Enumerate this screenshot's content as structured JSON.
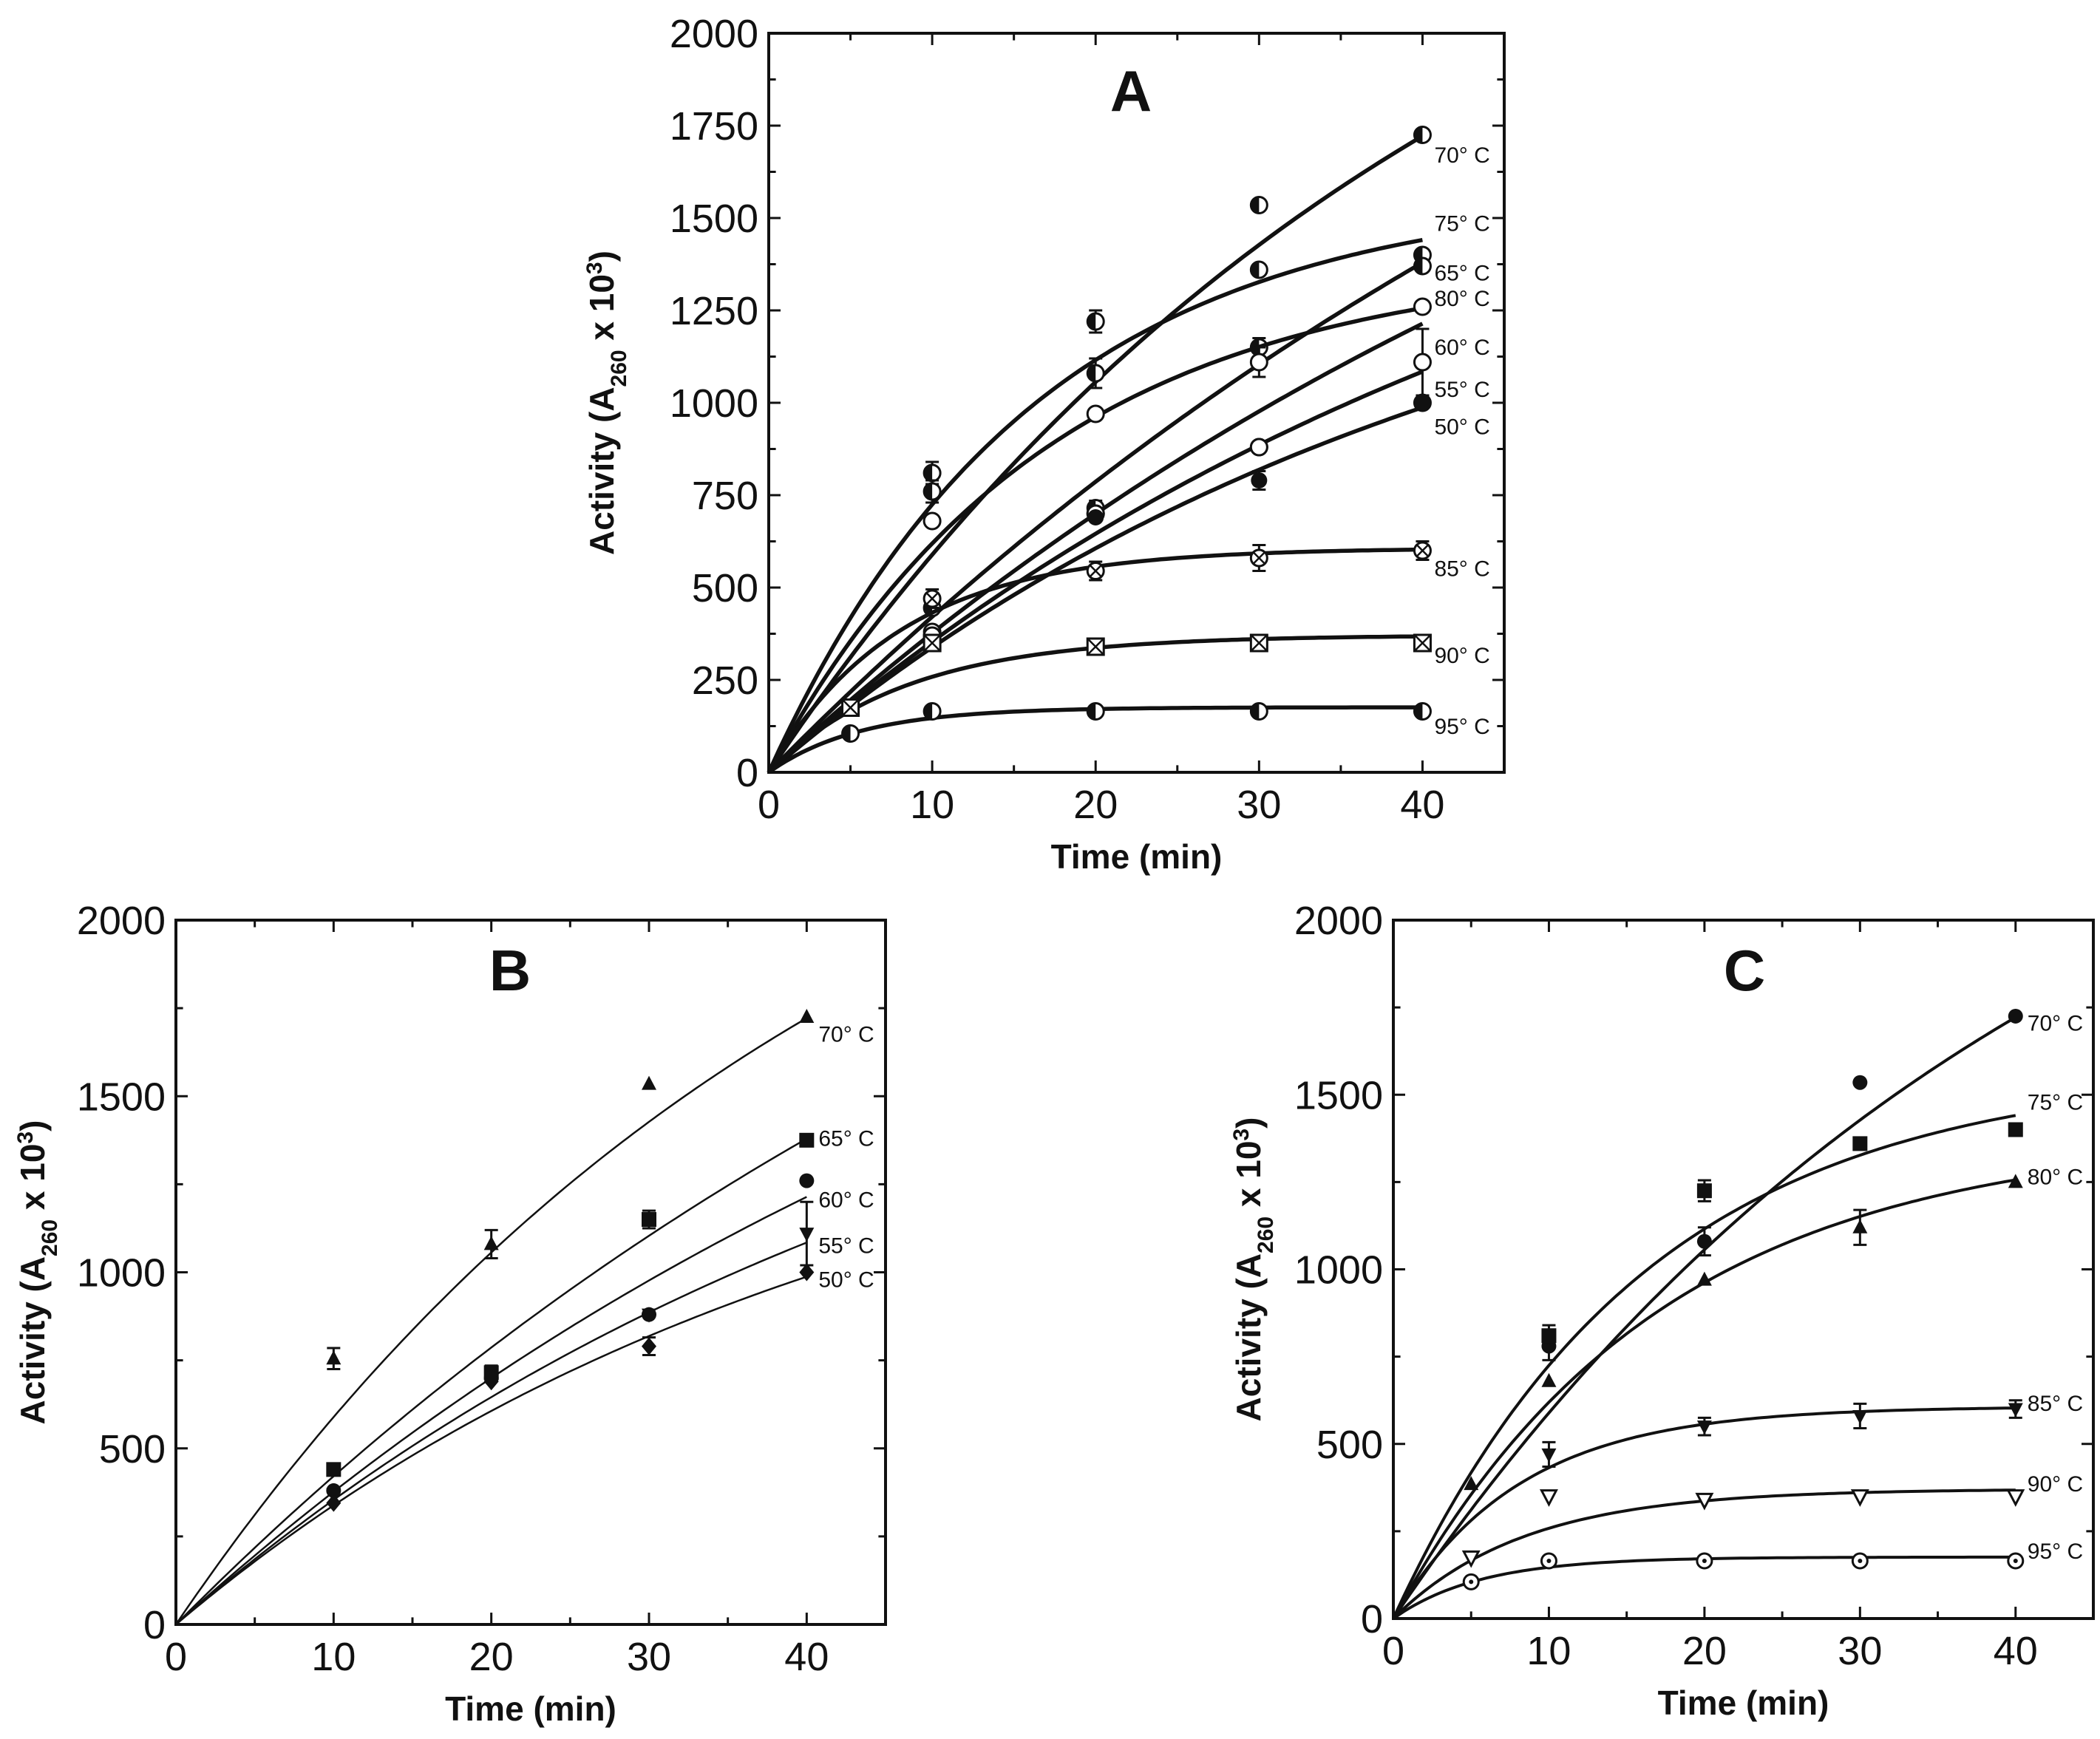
{
  "chart_data": [
    {
      "panel": "A",
      "type": "line",
      "title": "A",
      "xlabel": "Time (min)",
      "ylabel": "Activity (A260 x 103)",
      "ylabel_parts": [
        "Activity (A",
        "260",
        " x 10",
        "3",
        ")"
      ],
      "xlim": [
        0,
        45
      ],
      "ylim": [
        0,
        2000
      ],
      "x_ticks": [
        0,
        10,
        20,
        30,
        40
      ],
      "y_ticks": [
        0,
        250,
        500,
        750,
        1000,
        1250,
        1500,
        1750,
        2000
      ],
      "grid": false,
      "series": [
        {
          "name": "70° C",
          "x": [
            10,
            20,
            30,
            40
          ],
          "y": [
            810,
            1080,
            1535,
            1725
          ],
          "err": [
            30,
            40,
            0,
            0
          ],
          "fit": {
            "a": 2855,
            "k": 0.0231
          },
          "marker": "half-circle"
        },
        {
          "name": "75° C",
          "x": [
            10,
            20,
            30,
            40
          ],
          "y": [
            760,
            1220,
            1360,
            1400
          ],
          "err": [
            30,
            30,
            0,
            0
          ],
          "fit": {
            "a": 1574,
            "k": 0.0617
          },
          "marker": "half-circle"
        },
        {
          "name": "65° C",
          "x": [
            10,
            20,
            30,
            40
          ],
          "y": [
            445,
            715,
            1150,
            1370
          ],
          "err": [
            0,
            20,
            25,
            0
          ],
          "fit": {
            "a": 3200,
            "k": 0.0141
          },
          "marker": "half-circle"
        },
        {
          "name": "80° C",
          "x": [
            10,
            20,
            30,
            40
          ],
          "y": [
            680,
            970,
            1110,
            1260
          ],
          "err": [
            0,
            0,
            40,
            0
          ],
          "fit": {
            "a": 1386,
            "k": 0.0592
          },
          "marker": "circle-open"
        },
        {
          "name": "60° C",
          "x": [
            10,
            20,
            30,
            40
          ],
          "y": [
            380,
            700,
            880,
            1110
          ],
          "err": [
            0,
            0,
            0,
            90
          ],
          "fit": {
            "a": 2640,
            "k": 0.0154
          },
          "marker": "circle-open"
        },
        {
          "name": "55° C",
          "x": [
            10,
            20,
            30,
            40
          ],
          "y": [
            370,
            700,
            880,
            1000
          ],
          "err": [
            0,
            0,
            0,
            0
          ],
          "fit": {
            "a": 2016,
            "k": 0.0193
          },
          "marker": "circle-open"
        },
        {
          "name": "50° C",
          "x": [
            10,
            20,
            30,
            40
          ],
          "y": [
            350,
            690,
            790,
            1000
          ],
          "err": [
            0,
            0,
            25,
            0
          ],
          "fit": {
            "a": 1633,
            "k": 0.0232
          },
          "marker": "circle-filled"
        },
        {
          "name": "85° C",
          "x": [
            10,
            20,
            30,
            40
          ],
          "y": [
            470,
            545,
            580,
            600
          ],
          "err": [
            25,
            25,
            35,
            25
          ],
          "fit": {
            "a": 607,
            "k": 0.1244
          },
          "marker": "cross-circle"
        },
        {
          "name": "90° C",
          "x": [
            5,
            10,
            20,
            30,
            40
          ],
          "y": [
            175,
            350,
            340,
            350,
            350
          ],
          "err": [
            0,
            0,
            0,
            0,
            0
          ],
          "fit": {
            "a": 371,
            "k": 0.1193
          },
          "marker": "cross-square"
        },
        {
          "name": "95° C",
          "x": [
            5,
            10,
            20,
            30,
            40
          ],
          "y": [
            105,
            165,
            165,
            165,
            165
          ],
          "err": [
            0,
            0,
            0,
            0,
            0
          ],
          "fit": {
            "a": 176,
            "k": 0.1797
          },
          "marker": "half-circle"
        }
      ]
    },
    {
      "panel": "B",
      "type": "line",
      "title": "B",
      "xlabel": "Time (min)",
      "ylabel": "Activity (A260 x 103)",
      "ylabel_parts": [
        "Activity (A",
        "260",
        " x 10",
        "3",
        ")"
      ],
      "xlim": [
        0,
        45
      ],
      "ylim": [
        0,
        2000
      ],
      "x_ticks": [
        0,
        10,
        20,
        30,
        40
      ],
      "y_ticks": [
        0,
        500,
        1000,
        1500,
        2000
      ],
      "grid": false,
      "series": [
        {
          "name": "70° C",
          "x": [
            10,
            20,
            30,
            40
          ],
          "y": [
            755,
            1080,
            1535,
            1725
          ],
          "err": [
            30,
            40,
            0,
            0
          ],
          "fit": {
            "a": 2855,
            "k": 0.0231
          },
          "marker": "triangle-up"
        },
        {
          "name": "65° C",
          "x": [
            10,
            20,
            30,
            40
          ],
          "y": [
            440,
            715,
            1150,
            1375
          ],
          "err": [
            0,
            20,
            25,
            0
          ],
          "fit": {
            "a": 3200,
            "k": 0.0141
          },
          "marker": "square"
        },
        {
          "name": "60° C",
          "x": [
            10,
            20,
            30,
            40
          ],
          "y": [
            380,
            700,
            880,
            1260
          ],
          "err": [
            0,
            0,
            0,
            0
          ],
          "fit": {
            "a": 2640,
            "k": 0.0154
          },
          "marker": "circle"
        },
        {
          "name": "55° C",
          "x": [
            10,
            20,
            30,
            40
          ],
          "y": [
            370,
            700,
            880,
            1110
          ],
          "err": [
            0,
            0,
            0,
            90
          ],
          "fit": {
            "a": 2016,
            "k": 0.0193
          },
          "marker": "triangle-down"
        },
        {
          "name": "50° C",
          "x": [
            10,
            20,
            30,
            40
          ],
          "y": [
            345,
            690,
            790,
            1000
          ],
          "err": [
            0,
            0,
            25,
            0
          ],
          "fit": {
            "a": 1633,
            "k": 0.0232
          },
          "marker": "diamond"
        }
      ]
    },
    {
      "panel": "C",
      "type": "line",
      "title": "C",
      "xlabel": "Time (min)",
      "ylabel": "Activity (A260 x 103)",
      "ylabel_parts": [
        "Activity (A",
        "260",
        " x 10",
        "3",
        ")"
      ],
      "xlim": [
        0,
        45
      ],
      "ylim": [
        0,
        2000
      ],
      "x_ticks": [
        0,
        10,
        20,
        30,
        40
      ],
      "y_ticks": [
        0,
        500,
        1000,
        1500,
        2000
      ],
      "grid": false,
      "series": [
        {
          "name": "70° C",
          "x": [
            10,
            20,
            30,
            40
          ],
          "y": [
            780,
            1080,
            1535,
            1725
          ],
          "err": [
            40,
            40,
            0,
            0
          ],
          "fit": {
            "a": 2855,
            "k": 0.0231
          },
          "marker": "circle"
        },
        {
          "name": "75° C",
          "x": [
            10,
            20,
            30,
            40
          ],
          "y": [
            810,
            1225,
            1360,
            1400
          ],
          "err": [
            30,
            30,
            0,
            0
          ],
          "fit": {
            "a": 1574,
            "k": 0.0617
          },
          "marker": "square"
        },
        {
          "name": "80° C",
          "x": [
            5,
            10,
            20,
            30,
            40
          ],
          "y": [
            385,
            680,
            970,
            1120,
            1250
          ],
          "err": [
            0,
            0,
            0,
            50,
            0
          ],
          "fit": {
            "a": 1386,
            "k": 0.0592
          },
          "marker": "triangle-up"
        },
        {
          "name": "85° C",
          "x": [
            10,
            20,
            30,
            40
          ],
          "y": [
            470,
            550,
            580,
            600
          ],
          "err": [
            35,
            25,
            35,
            25
          ],
          "fit": {
            "a": 607,
            "k": 0.1244
          },
          "marker": "triangle-down"
        },
        {
          "name": "90° C",
          "x": [
            5,
            10,
            20,
            30,
            40
          ],
          "y": [
            175,
            350,
            340,
            350,
            350
          ],
          "err": [
            0,
            0,
            0,
            0,
            0
          ],
          "fit": {
            "a": 371,
            "k": 0.1193
          },
          "marker": "triangle-down-open"
        },
        {
          "name": "95° C",
          "x": [
            5,
            10,
            20,
            30,
            40
          ],
          "y": [
            105,
            165,
            165,
            165,
            165
          ],
          "err": [
            0,
            0,
            0,
            0,
            0
          ],
          "fit": {
            "a": 176,
            "k": 0.1797
          },
          "marker": "circle-dot-open"
        }
      ]
    }
  ]
}
